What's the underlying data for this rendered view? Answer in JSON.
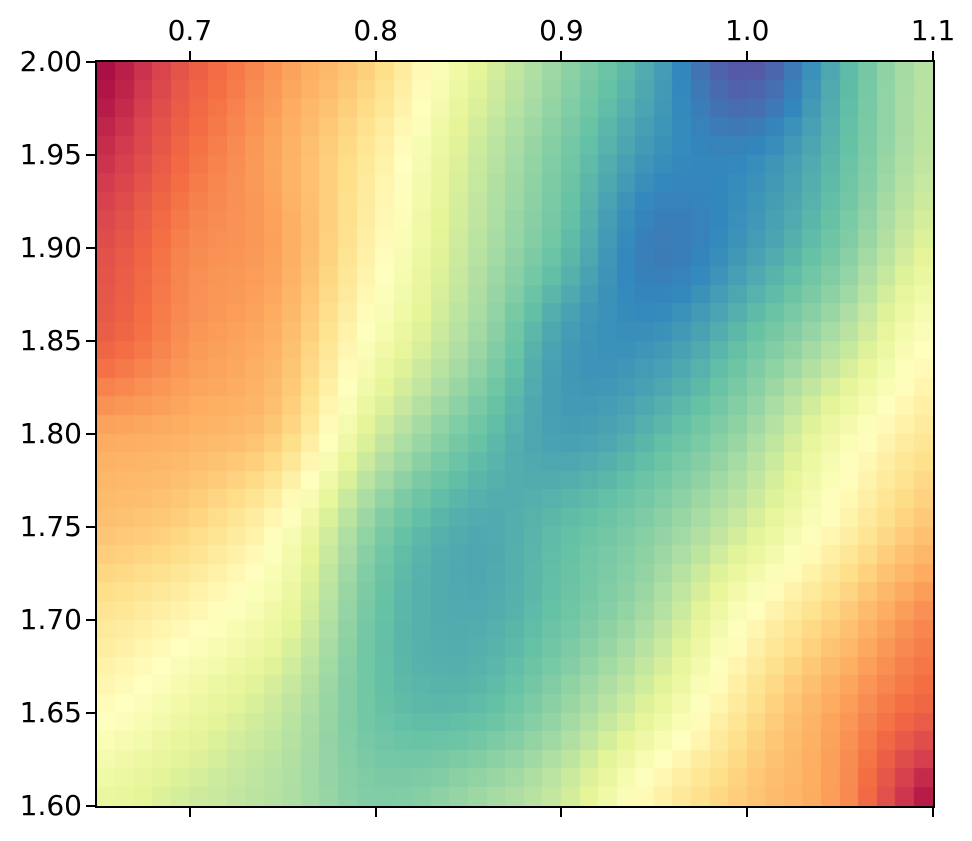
{
  "figure": {
    "background": "#ffffff",
    "spine_color": "#000000",
    "tick_color": "#000000",
    "tick_label_color": "#000000"
  },
  "chart_data": {
    "type": "heatmap",
    "title": "",
    "xlabel": "",
    "ylabel": "",
    "x_range": [
      0.65,
      1.1
    ],
    "y_range": [
      1.6,
      2.0
    ],
    "cell_size_x": 0.01,
    "cell_size_y": 0.01,
    "nx": 45,
    "ny": 40,
    "grid": "off",
    "legend": "none",
    "x_ticks": {
      "side": "top-and-bottom",
      "labels_side": "top",
      "positions": [
        0.7,
        0.8,
        0.9,
        1.0,
        1.1
      ],
      "labels": [
        "0.7",
        "0.8",
        "0.9",
        "1.0",
        "1.1"
      ]
    },
    "y_ticks": {
      "side": "left",
      "labels_side": "left",
      "positions": [
        2.0,
        1.95,
        1.9,
        1.85,
        1.8,
        1.75,
        1.7,
        1.65,
        1.6
      ],
      "labels": [
        "2.00",
        "1.95",
        "1.90",
        "1.85",
        "1.80",
        "1.75",
        "1.70",
        "1.65",
        "1.60"
      ]
    },
    "colormap": {
      "name": "Spectral",
      "stops": [
        [
          0.0,
          "#9E0142"
        ],
        [
          0.1,
          "#D53E4F"
        ],
        [
          0.2,
          "#F46D43"
        ],
        [
          0.3,
          "#FDAE61"
        ],
        [
          0.4,
          "#FEE08B"
        ],
        [
          0.5,
          "#FFFFBF"
        ],
        [
          0.6,
          "#E6F598"
        ],
        [
          0.7,
          "#ABDDA4"
        ],
        [
          0.8,
          "#66C2A5"
        ],
        [
          0.9,
          "#3288BD"
        ],
        [
          1.0,
          "#5E4FA2"
        ]
      ]
    },
    "value_scale": "normalized 0-1 (no colorbar shown in figure)",
    "sample_grid": {
      "x": [
        0.65,
        0.7,
        0.75,
        0.8,
        0.85,
        0.9,
        0.95,
        1.0,
        1.05,
        1.1
      ],
      "y": [
        2.0,
        1.95,
        1.9,
        1.85,
        1.8,
        1.75,
        1.7,
        1.65,
        1.6
      ],
      "values": [
        [
          0.01,
          0.16,
          0.27,
          0.38,
          0.58,
          0.73,
          0.85,
          0.99,
          0.83,
          0.67
        ],
        [
          0.07,
          0.2,
          0.3,
          0.44,
          0.63,
          0.77,
          0.88,
          0.9,
          0.81,
          0.66
        ],
        [
          0.13,
          0.24,
          0.29,
          0.47,
          0.66,
          0.8,
          0.92,
          0.87,
          0.77,
          0.6
        ],
        [
          0.17,
          0.26,
          0.32,
          0.53,
          0.7,
          0.86,
          0.88,
          0.8,
          0.68,
          0.5
        ],
        [
          0.29,
          0.31,
          0.37,
          0.63,
          0.78,
          0.86,
          0.82,
          0.72,
          0.55,
          0.42
        ],
        [
          0.34,
          0.38,
          0.5,
          0.75,
          0.84,
          0.81,
          0.75,
          0.63,
          0.47,
          0.34
        ],
        [
          0.42,
          0.48,
          0.58,
          0.79,
          0.84,
          0.79,
          0.69,
          0.5,
          0.36,
          0.24
        ],
        [
          0.49,
          0.57,
          0.66,
          0.79,
          0.81,
          0.73,
          0.59,
          0.41,
          0.28,
          0.17
        ],
        [
          0.58,
          0.64,
          0.69,
          0.76,
          0.72,
          0.64,
          0.46,
          0.35,
          0.26,
          0.02
        ]
      ]
    }
  }
}
